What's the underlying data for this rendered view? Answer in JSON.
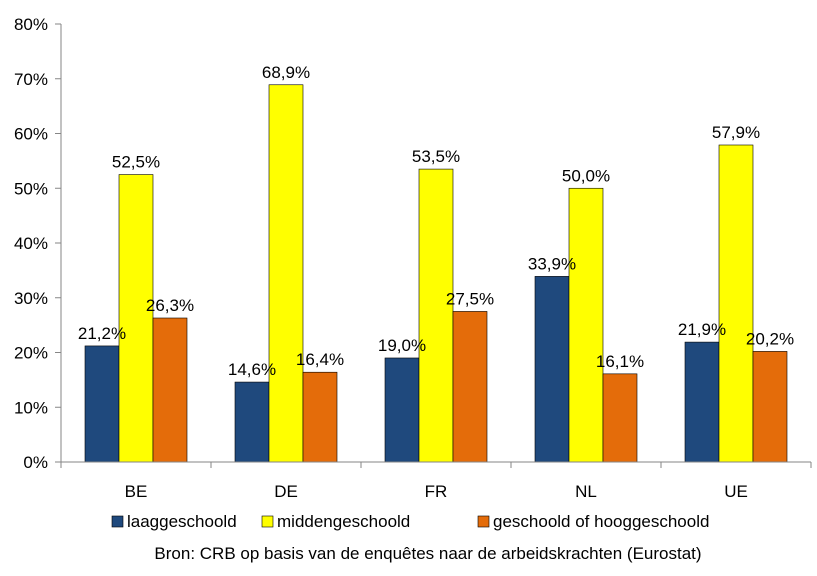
{
  "chart_data": {
    "type": "bar",
    "categories": [
      "BE",
      "DE",
      "FR",
      "NL",
      "UE"
    ],
    "series": [
      {
        "name": "laaggeschoold",
        "color": "#1f497d",
        "values": [
          21.2,
          14.6,
          19.0,
          33.9,
          21.9
        ],
        "labels": [
          "21,2%",
          "14,6%",
          "19,0%",
          "33,9%",
          "21,9%"
        ]
      },
      {
        "name": "middengeschoold",
        "color": "#ffff00",
        "values": [
          52.5,
          68.9,
          53.5,
          50.0,
          57.9
        ],
        "labels": [
          "52,5%",
          "68,9%",
          "53,5%",
          "50,0%",
          "57,9%"
        ]
      },
      {
        "name": "geschoold of hooggeschoold",
        "color": "#e46c0a",
        "values": [
          26.3,
          16.4,
          27.5,
          16.1,
          20.2
        ],
        "labels": [
          "26,3%",
          "16,4%",
          "27,5%",
          "16,1%",
          "20,2%"
        ]
      }
    ],
    "ylim": [
      0,
      80
    ],
    "yticks": [
      0,
      10,
      20,
      30,
      40,
      50,
      60,
      70,
      80
    ],
    "ytick_labels": [
      "0%",
      "10%",
      "20%",
      "30%",
      "40%",
      "50%",
      "60%",
      "70%",
      "80%"
    ],
    "grid": false,
    "legend_position": "bottom",
    "source": "Bron: CRB op basis van de enquêtes naar de arbeidskrachten (Eurostat)"
  }
}
